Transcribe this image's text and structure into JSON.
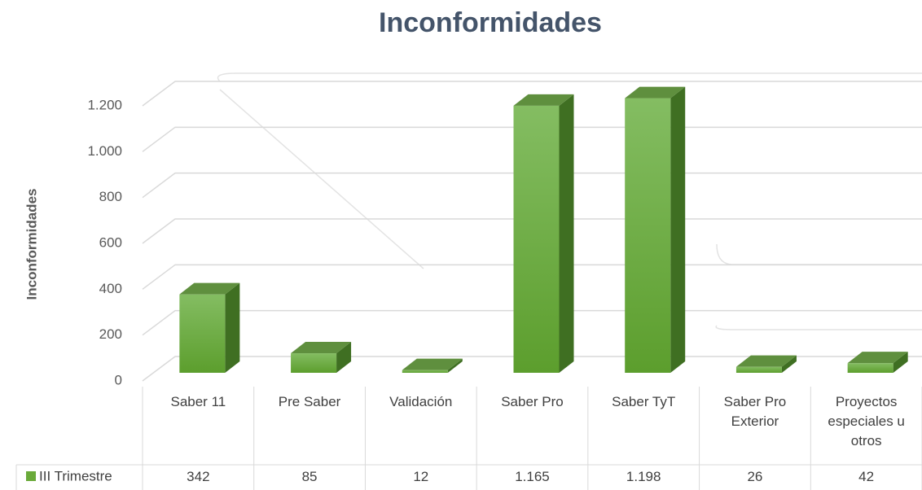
{
  "chart_data": {
    "type": "bar",
    "title": "Inconformidades",
    "y_label": "Inconformidades",
    "categories": [
      "Saber 11",
      "Pre Saber",
      "Validación",
      "Saber Pro",
      "Saber TyT",
      "Saber Pro Exterior",
      "Proyectos especiales u otros"
    ],
    "series": [
      {
        "name": "III Trimestre",
        "color": "#6aaa3a",
        "values": [
          342,
          85,
          12,
          1165,
          1198,
          26,
          42
        ],
        "value_labels": [
          "342",
          "85",
          "12",
          "1.165",
          "1.198",
          "26",
          "42"
        ]
      }
    ],
    "ylim": [
      0,
      1200
    ],
    "yticks": [
      0,
      200,
      400,
      600,
      800,
      {
        "value": 1000,
        "label": "1.000"
      },
      {
        "value": 1200,
        "label": "1.200"
      }
    ],
    "grid": true
  }
}
